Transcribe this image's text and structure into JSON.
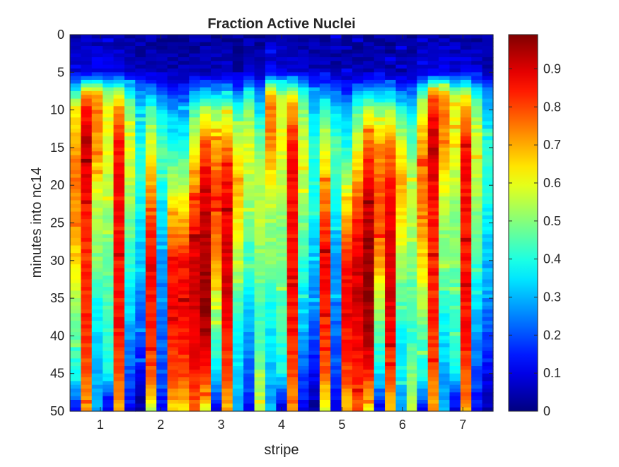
{
  "chart_data": {
    "type": "heatmap",
    "title": "Fraction Active Nuclei",
    "xlabel": "stripe",
    "ylabel": "minutes into nc14",
    "x_ticks": [
      "1",
      "2",
      "3",
      "4",
      "5",
      "6",
      "7"
    ],
    "y_ticks": [
      "0",
      "5",
      "10",
      "15",
      "20",
      "25",
      "30",
      "35",
      "40",
      "45",
      "50"
    ],
    "xlim": [
      0.5,
      7.5
    ],
    "ylim": [
      0,
      50
    ],
    "y_direction": "reversed",
    "colormap": "jet",
    "clim": [
      0,
      0.99
    ],
    "colorbar_ticks": [
      "0",
      "0.1",
      "0.2",
      "0.3",
      "0.4",
      "0.5",
      "0.6",
      "0.7",
      "0.8",
      "0.9"
    ],
    "grid": false,
    "columns_x": [
      0.59,
      0.77,
      0.95,
      1.13,
      1.31,
      1.49,
      1.67,
      1.84,
      2.02,
      2.2,
      2.38,
      2.56,
      2.74,
      2.92,
      3.1,
      3.28,
      3.46,
      3.64,
      3.82,
      4.0,
      4.18,
      4.36,
      4.54,
      4.72,
      4.9,
      5.08,
      5.26,
      5.44,
      5.62,
      5.8,
      5.98,
      6.16,
      6.33,
      6.51,
      6.69,
      6.87,
      7.05,
      7.23,
      7.41
    ],
    "profile_times_min": [
      0,
      5,
      8,
      10,
      15,
      20,
      25,
      30,
      35,
      40,
      45,
      48,
      50
    ],
    "column_profiles": [
      [
        0.05,
        0.1,
        0.45,
        0.6,
        0.72,
        0.75,
        0.72,
        0.65,
        0.55,
        0.45,
        0.4,
        0.25,
        0.1
      ],
      [
        0.05,
        0.1,
        0.75,
        0.85,
        0.93,
        0.87,
        0.84,
        0.82,
        0.83,
        0.82,
        0.78,
        0.72,
        0.7
      ],
      [
        0.04,
        0.12,
        0.7,
        0.75,
        0.72,
        0.6,
        0.52,
        0.5,
        0.4,
        0.35,
        0.3,
        0.28,
        0.3
      ],
      [
        0.04,
        0.1,
        0.55,
        0.6,
        0.6,
        0.55,
        0.5,
        0.48,
        0.45,
        0.42,
        0.38,
        0.15,
        0.1
      ],
      [
        0.04,
        0.1,
        0.6,
        0.72,
        0.86,
        0.86,
        0.85,
        0.85,
        0.85,
        0.85,
        0.8,
        0.75,
        0.7
      ],
      [
        0.03,
        0.08,
        0.4,
        0.5,
        0.58,
        0.55,
        0.48,
        0.42,
        0.35,
        0.28,
        0.2,
        0.15,
        0.1
      ],
      [
        0.03,
        0.06,
        0.28,
        0.32,
        0.4,
        0.4,
        0.35,
        0.3,
        0.25,
        0.2,
        0.12,
        0.05,
        0.05
      ],
      [
        0.03,
        0.06,
        0.3,
        0.45,
        0.6,
        0.7,
        0.8,
        0.88,
        0.85,
        0.82,
        0.78,
        0.65,
        0.55
      ],
      [
        0.03,
        0.05,
        0.25,
        0.35,
        0.45,
        0.4,
        0.32,
        0.28,
        0.24,
        0.22,
        0.2,
        0.15,
        0.12
      ],
      [
        0.02,
        0.05,
        0.18,
        0.28,
        0.4,
        0.55,
        0.7,
        0.85,
        0.87,
        0.85,
        0.8,
        0.72,
        0.65
      ],
      [
        0.03,
        0.05,
        0.3,
        0.45,
        0.6,
        0.72,
        0.85,
        0.9,
        0.91,
        0.88,
        0.85,
        0.8,
        0.78
      ],
      [
        0.03,
        0.06,
        0.35,
        0.55,
        0.8,
        0.88,
        0.93,
        0.95,
        0.97,
        0.95,
        0.85,
        0.7,
        0.6
      ],
      [
        0.03,
        0.06,
        0.32,
        0.5,
        0.72,
        0.78,
        0.78,
        0.72,
        0.55,
        0.45,
        0.35,
        0.2,
        0.1
      ],
      [
        0.02,
        0.05,
        0.35,
        0.55,
        0.75,
        0.85,
        0.88,
        0.9,
        0.9,
        0.85,
        0.8,
        0.7,
        0.7
      ],
      [
        0.02,
        0.04,
        0.25,
        0.4,
        0.6,
        0.7,
        0.62,
        0.55,
        0.45,
        0.38,
        0.35,
        0.3,
        0.3
      ],
      [
        0.02,
        0.05,
        0.25,
        0.35,
        0.48,
        0.55,
        0.55,
        0.5,
        0.45,
        0.42,
        0.5,
        0.55,
        0.58
      ]
    ],
    "stripe_column_map": [
      [
        0,
        0
      ],
      [
        1,
        1
      ],
      [
        2,
        2
      ],
      [
        3,
        3
      ],
      [
        4,
        4
      ],
      [
        5,
        5
      ],
      [
        6,
        6
      ],
      [
        7,
        7
      ],
      [
        8,
        8
      ],
      [
        9,
        9
      ],
      [
        10,
        9
      ],
      [
        11,
        10
      ],
      [
        12,
        11
      ],
      [
        13,
        12
      ],
      [
        14,
        13
      ],
      [
        15,
        14
      ],
      [
        16,
        5
      ],
      [
        17,
        15
      ]
    ]
  }
}
